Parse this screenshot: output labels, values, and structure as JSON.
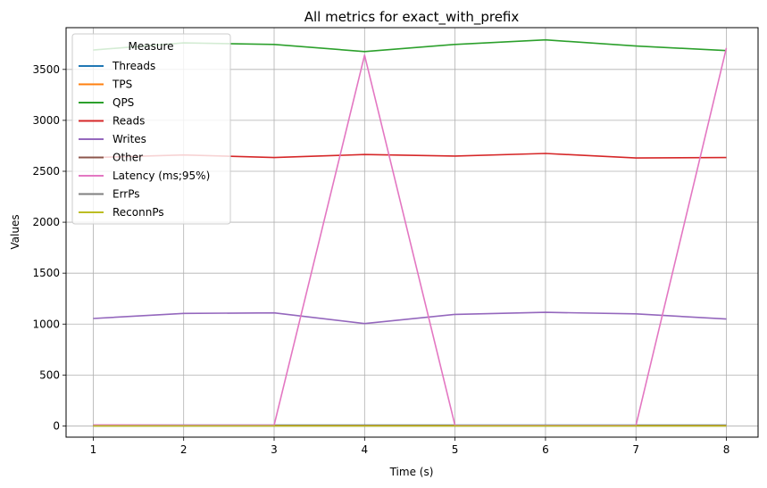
{
  "chart_data": {
    "type": "line",
    "title": "All metrics for exact_with_prefix",
    "xlabel": "Time (s)",
    "ylabel": "Values",
    "x": [
      1,
      2,
      3,
      4,
      5,
      6,
      7,
      8
    ],
    "xlim": [
      0.7,
      8.35
    ],
    "ylim": [
      -110,
      3910
    ],
    "xticks": [
      "1",
      "2",
      "3",
      "4",
      "5",
      "6",
      "7",
      "8"
    ],
    "yticks": [
      "0",
      "500",
      "1000",
      "1500",
      "2000",
      "2500",
      "3000",
      "3500"
    ],
    "ytick_values": [
      0,
      500,
      1000,
      1500,
      2000,
      2500,
      3000,
      3500
    ],
    "grid": true,
    "legend": {
      "title": "Measure",
      "placement": "top-left"
    },
    "series": [
      {
        "name": "Threads",
        "color": "#1f77b4",
        "values": [
          8,
          8,
          8,
          8,
          8,
          8,
          8,
          8
        ]
      },
      {
        "name": "TPS",
        "color": "#ff7f0e",
        "values": [
          5,
          5,
          5,
          5,
          5,
          5,
          5,
          5
        ]
      },
      {
        "name": "QPS",
        "color": "#2ca02c",
        "values": [
          3690,
          3760,
          3745,
          3675,
          3745,
          3790,
          3730,
          3685
        ]
      },
      {
        "name": "Reads",
        "color": "#d62728",
        "values": [
          2635,
          2660,
          2635,
          2665,
          2650,
          2675,
          2630,
          2635
        ]
      },
      {
        "name": "Writes",
        "color": "#9467bd",
        "values": [
          1055,
          1105,
          1110,
          1005,
          1095,
          1115,
          1100,
          1050
        ]
      },
      {
        "name": "Other",
        "color": "#8c564b",
        "values": [
          3,
          3,
          3,
          3,
          3,
          3,
          3,
          3
        ]
      },
      {
        "name": "Latency (ms;95%)",
        "color": "#e377c2",
        "values": [
          10,
          8,
          7,
          3640,
          5,
          5,
          5,
          3710
        ]
      },
      {
        "name": "ErrPs",
        "color": "#7f7f7f",
        "values": [
          0,
          0,
          0,
          0,
          0,
          0,
          0,
          0
        ]
      },
      {
        "name": "ReconnPs",
        "color": "#bcbd22",
        "values": [
          0,
          0,
          0,
          0,
          0,
          0,
          0,
          0
        ]
      }
    ]
  }
}
